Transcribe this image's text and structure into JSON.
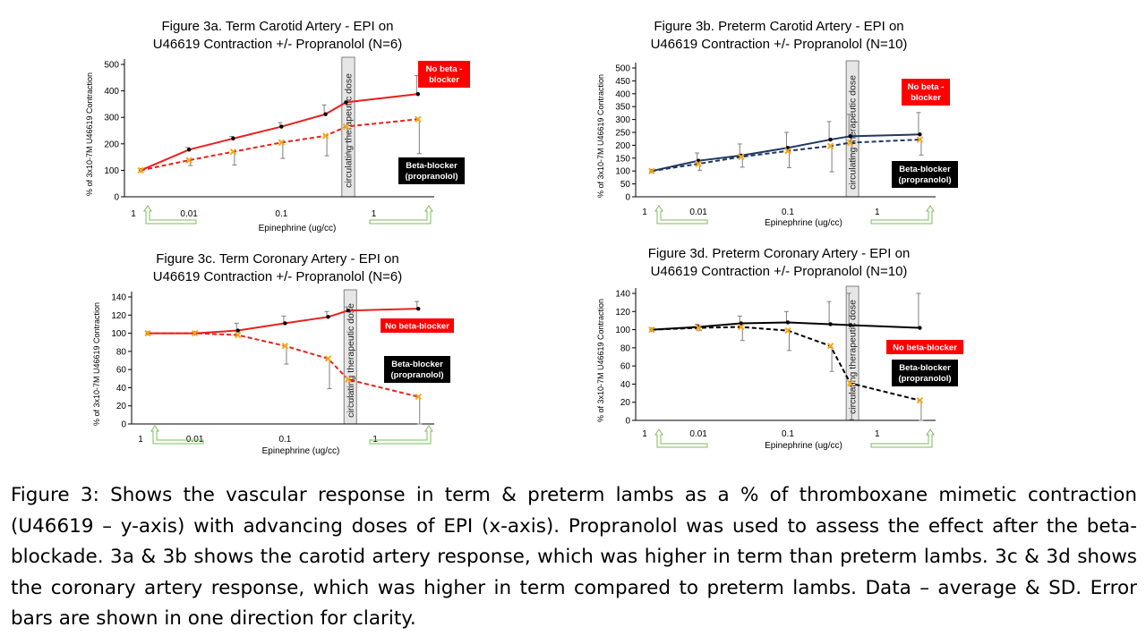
{
  "caption": "Figure 3: Shows the vascular response in term & preterm lambs as a % of thromboxane mimetic contraction (U46619 – y-axis) with advancing doses of EPI (x-axis). Propranolol was used to assess the effect after the beta-blockade. 3a & 3b shows the carotid artery response, which was higher in term than preterm lambs. 3c & 3d shows the coronary artery response, which was higher in term compared to preterm lambs. Data – average & SD. Error bars are shown in one direction for clarity.",
  "chart_data": [
    {
      "id": "3a",
      "type": "line",
      "title_lines": [
        "Figure 3a. Term Carotid Artery - EPI on",
        "U46619 Contraction +/- Propranolol (N=6)"
      ],
      "xlabel": "Epinephrine (ug/cc)",
      "ylabel": "% of 3x10-7M U46619 Contraction",
      "x_scale": "log",
      "x_ticklabels": [
        "1",
        "0.01",
        "0.1",
        "1"
      ],
      "ylim": [
        0,
        500
      ],
      "yticks": [
        0,
        100,
        200,
        300,
        400,
        500
      ],
      "band_label": "circulating therapeutic dose",
      "series": [
        {
          "name": "No beta - blocker",
          "color": "#e8211c",
          "dash": false,
          "marker_color": "#000000",
          "x": [
            0.003,
            0.01,
            0.03,
            0.1,
            0.3,
            0.5,
            3
          ],
          "y": [
            100,
            178,
            220,
            265,
            312,
            357,
            388
          ],
          "err": [
            0,
            8,
            8,
            15,
            35,
            0,
            70
          ]
        },
        {
          "name": "Beta-blocker (propranolol)",
          "color": "#e8211c",
          "dash": true,
          "marker_color": "#f2a81d",
          "x": [
            0.003,
            0.01,
            0.03,
            0.1,
            0.3,
            0.5,
            3
          ],
          "y": [
            100,
            138,
            170,
            205,
            230,
            265,
            293
          ],
          "err": [
            0,
            20,
            50,
            60,
            75,
            100,
            130
          ]
        }
      ],
      "legend_labels": [
        {
          "text": "No beta - blocker",
          "bg": "#ff0000"
        },
        {
          "text": "Beta-blocker (propranolol)",
          "bg": "#000000"
        }
      ]
    },
    {
      "id": "3b",
      "type": "line",
      "title_lines": [
        "Figure 3b. Preterm Carotid Artery - EPI on",
        "U46619 Contraction +/- Propranolol (N=10)"
      ],
      "xlabel": "Epinephrine (ug/cc)",
      "ylabel": "% of 3x10-7M U46619 Contraction",
      "x_scale": "log",
      "x_ticklabels": [
        "1",
        "0.01",
        "0.1",
        "1"
      ],
      "ylim": [
        0,
        500
      ],
      "yticks": [
        0,
        50,
        100,
        150,
        200,
        250,
        300,
        350,
        400,
        450,
        500
      ],
      "band_label": "circulating therapeutic dose",
      "series": [
        {
          "name": "No beta - blocker",
          "color": "#1f3864",
          "dash": false,
          "marker_color": "#000000",
          "x": [
            0.003,
            0.01,
            0.03,
            0.1,
            0.3,
            0.5,
            3
          ],
          "y": [
            100,
            140,
            160,
            190,
            222,
            235,
            242
          ],
          "err": [
            0,
            30,
            45,
            60,
            70,
            85,
            85
          ]
        },
        {
          "name": "Beta-blocker (propranolol)",
          "color": "#1f3864",
          "dash": true,
          "marker_color": "#f2a81d",
          "x": [
            0.003,
            0.01,
            0.03,
            0.1,
            0.3,
            0.5,
            3
          ],
          "y": [
            100,
            128,
            155,
            178,
            197,
            210,
            222
          ],
          "err": [
            0,
            25,
            40,
            65,
            100,
            65,
            60
          ]
        }
      ],
      "legend_labels": [
        {
          "text": "No beta - blocker",
          "bg": "#ff0000"
        },
        {
          "text": "Beta-blocker (propranolol)",
          "bg": "#000000"
        }
      ]
    },
    {
      "id": "3c",
      "type": "line",
      "title_lines": [
        "Figure 3c. Term Coronary Artery - EPI on",
        "U46619 Contraction +/- Propranolol (N=6)"
      ],
      "xlabel": "Epinephrine (ug/cc)",
      "ylabel": "% of 3x10-7M U46619 Contraction",
      "x_scale": "log",
      "x_ticklabels": [
        "1",
        "0.01",
        "0.1",
        "1"
      ],
      "ylim": [
        0,
        140
      ],
      "yticks": [
        0,
        20,
        40,
        60,
        80,
        100,
        120,
        140
      ],
      "band_label": "circulating therapeutic dose",
      "series": [
        {
          "name": "No beta-blocker",
          "color": "#e8211c",
          "dash": false,
          "marker_color": "#000000",
          "x": [
            0.003,
            0.01,
            0.03,
            0.1,
            0.3,
            0.5,
            3
          ],
          "y": [
            100,
            100,
            103,
            111,
            118,
            125,
            127
          ],
          "err": [
            0,
            0,
            8,
            8,
            6,
            4,
            8
          ]
        },
        {
          "name": "Beta-blocker (propranolol)",
          "color": "#e8211c",
          "dash": true,
          "marker_color": "#f2a81d",
          "x": [
            0.003,
            0.01,
            0.03,
            0.1,
            0.3,
            0.5,
            3
          ],
          "y": [
            100,
            100,
            98,
            86,
            72,
            49,
            30
          ],
          "err": [
            0,
            0,
            0,
            20,
            33,
            30,
            30
          ]
        }
      ],
      "legend_labels": [
        {
          "text": "No beta-blocker",
          "bg": "#ff0000"
        },
        {
          "text": "Beta-blocker (propranolol)",
          "bg": "#000000"
        }
      ]
    },
    {
      "id": "3d",
      "type": "line",
      "title_lines": [
        "Figure 3d. Preterm Coronary Artery - EPI on",
        "U46619 Contraction +/- Propranolol (N=10)"
      ],
      "xlabel": "Epinephrine (ug/cc)",
      "ylabel": "% of 3x10-7M U46619 Contraction",
      "x_scale": "log",
      "x_ticklabels": [
        "1",
        "0.01",
        "0.1",
        "1"
      ],
      "ylim": [
        0,
        140
      ],
      "yticks": [
        0,
        20,
        40,
        60,
        80,
        100,
        120,
        140
      ],
      "band_label": "circulating therapeutic dose",
      "series": [
        {
          "name": "No beta-blocker",
          "color": "#000000",
          "dash": false,
          "marker_color": "#000000",
          "x": [
            0.003,
            0.01,
            0.03,
            0.1,
            0.3,
            0.5,
            3
          ],
          "y": [
            100,
            103,
            107,
            108,
            106,
            105,
            102
          ],
          "err": [
            0,
            3,
            8,
            12,
            25,
            35,
            38
          ]
        },
        {
          "name": "Beta-blocker (propranolol)",
          "color": "#000000",
          "dash": true,
          "marker_color": "#f2a81d",
          "x": [
            0.003,
            0.01,
            0.03,
            0.1,
            0.3,
            0.5,
            3
          ],
          "y": [
            100,
            102,
            103,
            99,
            82,
            41,
            22
          ],
          "err": [
            0,
            3,
            15,
            22,
            28,
            40,
            25
          ]
        }
      ],
      "legend_labels": [
        {
          "text": "No beta-blocker",
          "bg": "#ff0000"
        },
        {
          "text": "Beta-blocker (propranolol)",
          "bg": "#000000"
        }
      ]
    }
  ]
}
